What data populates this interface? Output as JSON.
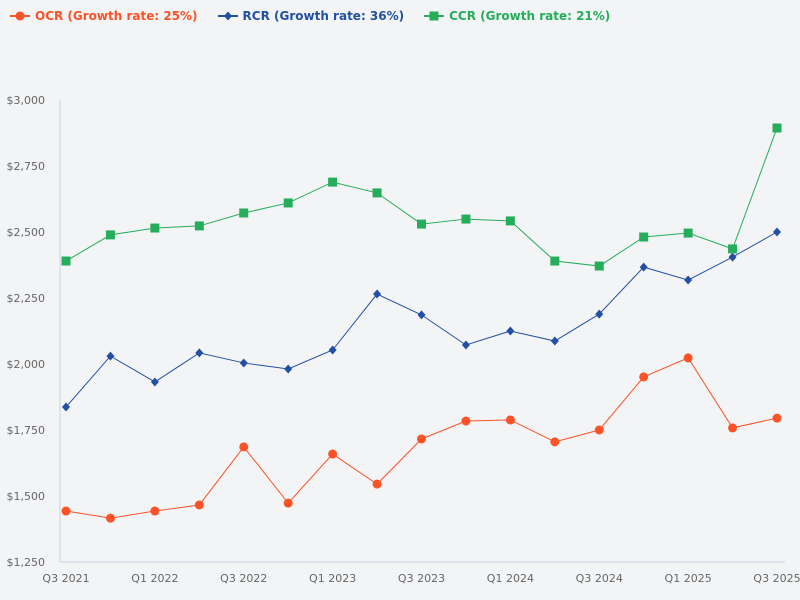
{
  "chart_data": {
    "type": "line",
    "title": "",
    "xlabel": "",
    "ylabel": "",
    "ylim": [
      1250,
      3000
    ],
    "yticks": [
      "$1,250",
      "$1,500",
      "$1,750",
      "$2,000",
      "$2,250",
      "$2,500",
      "$2,750",
      "$3,000"
    ],
    "ytick_values": [
      1250,
      1500,
      1750,
      2000,
      2250,
      2500,
      2750,
      3000
    ],
    "grid": false,
    "legend_position": "top-left",
    "categories": [
      "Q3 2021",
      "Q4 2021",
      "Q1 2022",
      "Q2 2022",
      "Q3 2022",
      "Q4 2022",
      "Q1 2023",
      "Q2 2023",
      "Q3 2023",
      "Q4 2023",
      "Q1 2024",
      "Q2 2024",
      "Q3 2024",
      "Q4 2024",
      "Q1 2025",
      "Q2 2025",
      "Q3 2025"
    ],
    "xtick_labels": [
      "Q3 2021",
      "",
      "Q1 2022",
      "",
      "Q3 2022",
      "",
      "Q1 2023",
      "",
      "Q3 2023",
      "",
      "Q1 2024",
      "",
      "Q3 2024",
      "",
      "Q1 2025",
      "",
      "Q3 2025"
    ],
    "series": [
      {
        "name": "OCR (Growth rate: 25%)",
        "color": "#fc5227",
        "marker": "circle",
        "values": [
          1443,
          1416,
          1443,
          1466,
          1686,
          1473,
          1659,
          1545,
          1716,
          1784,
          1788,
          1705,
          1750,
          1951,
          2023,
          1758,
          1795
        ]
      },
      {
        "name": "RCR (Growth rate: 36%)",
        "color": "#2350a4",
        "marker": "diamond",
        "values": [
          1837,
          2030,
          1932,
          2042,
          2004,
          1981,
          2053,
          2265,
          2186,
          2072,
          2125,
          2087,
          2189,
          2367,
          2318,
          2405,
          2500
        ]
      },
      {
        "name": "CCR (Growth rate: 21%)",
        "color": "#25ad5b",
        "marker": "square",
        "values": [
          2390,
          2489,
          2515,
          2523,
          2572,
          2610,
          2689,
          2648,
          2530,
          2549,
          2542,
          2390,
          2371,
          2481,
          2496,
          2436,
          2894
        ]
      }
    ]
  }
}
